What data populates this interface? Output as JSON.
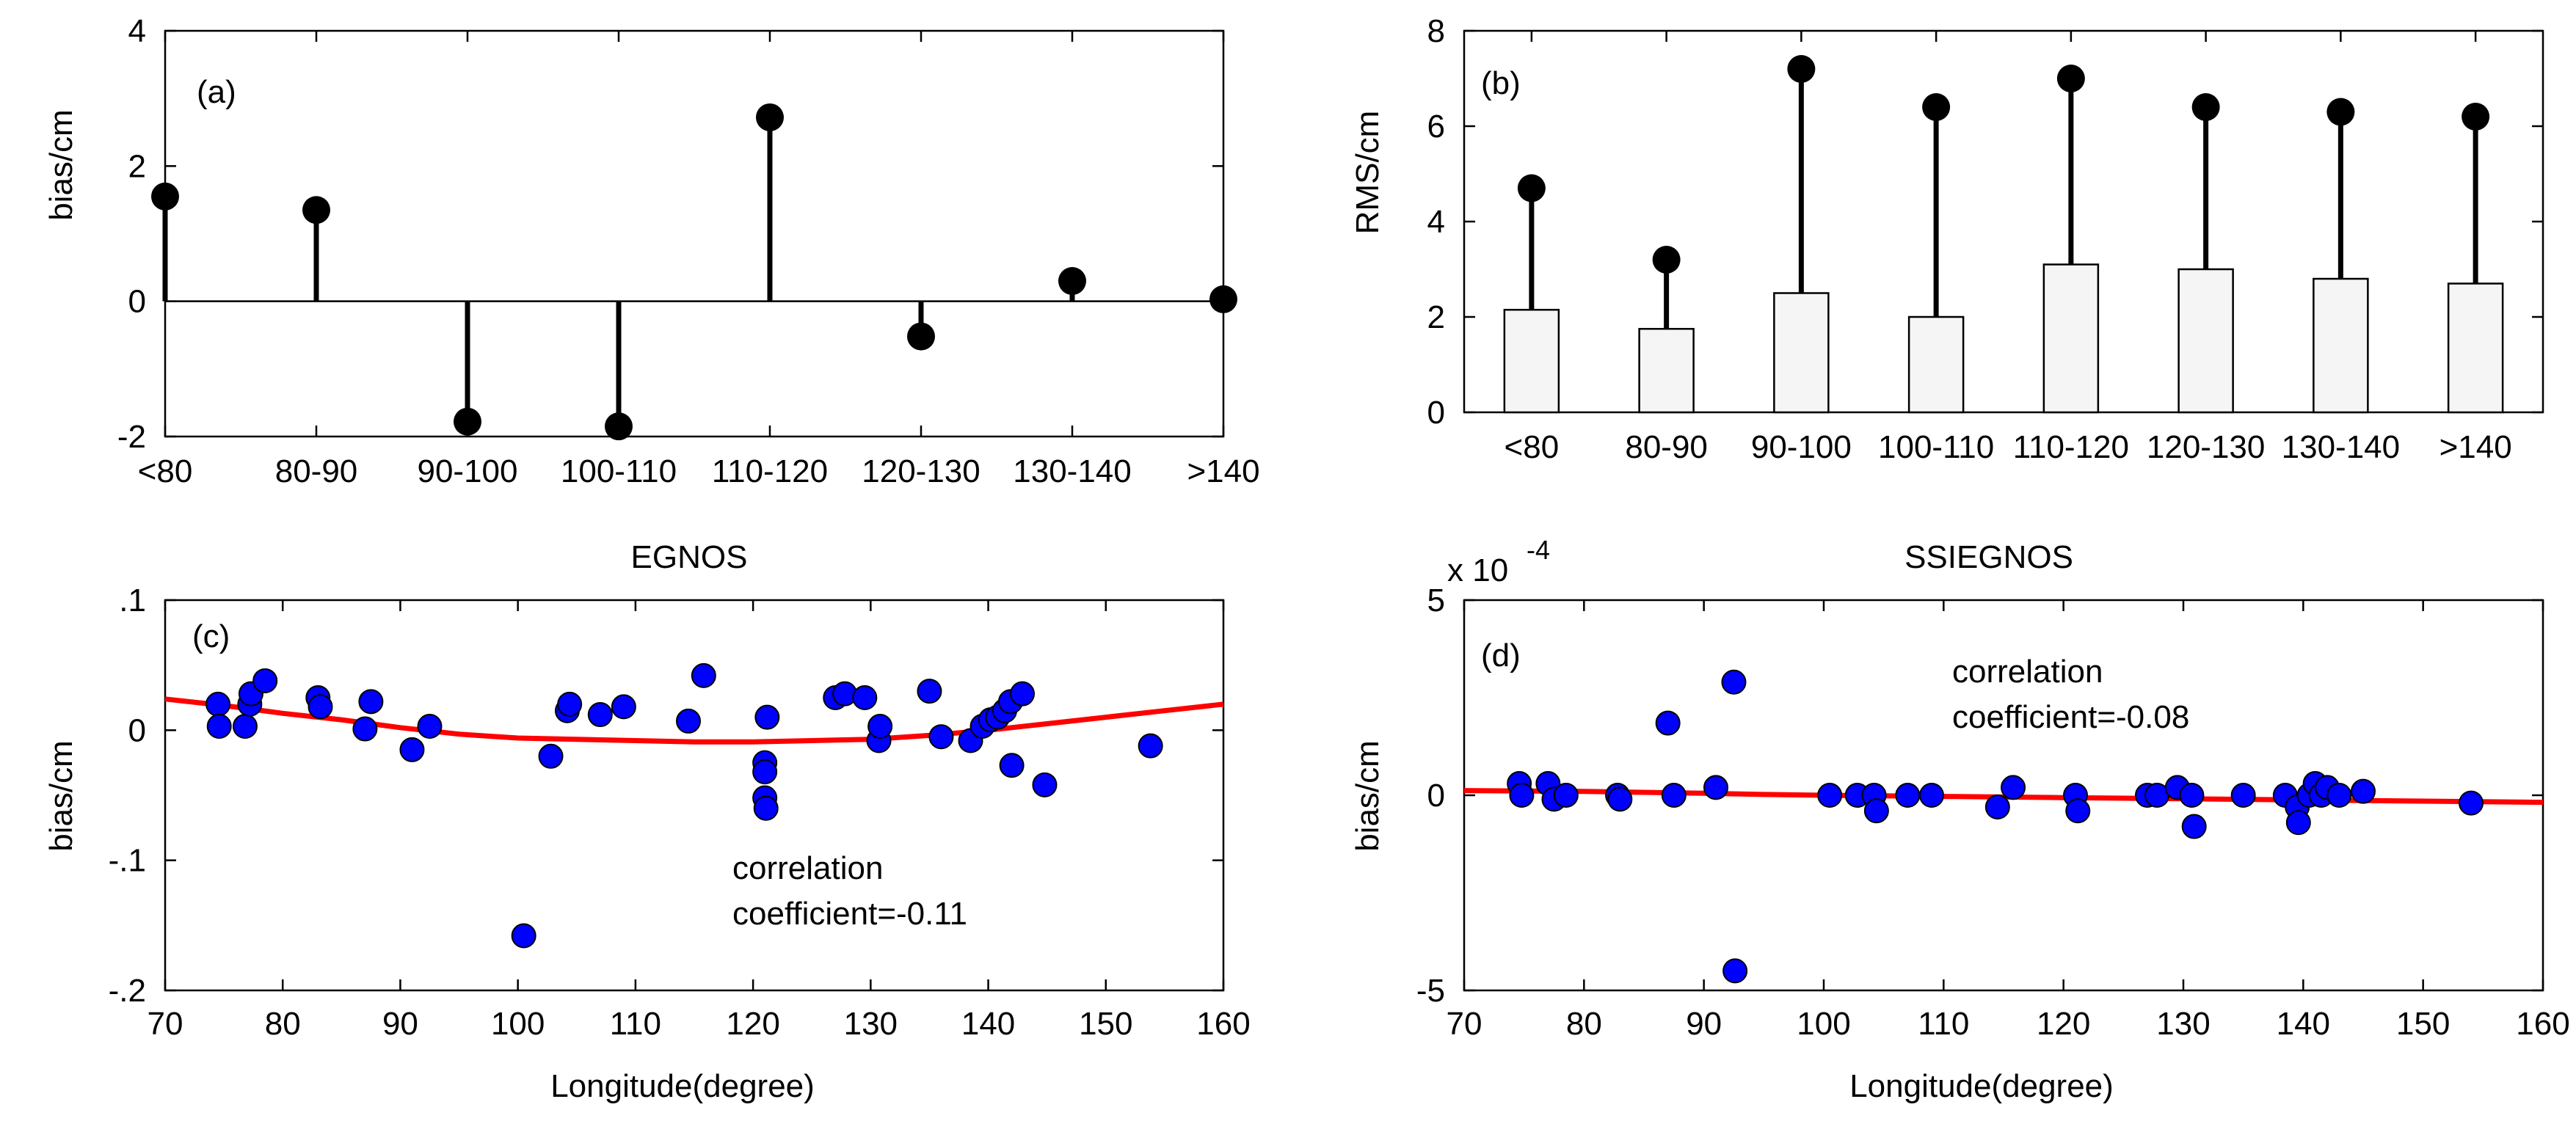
{
  "chart_data": [
    {
      "id": "a",
      "type": "stem",
      "panel_label": "(a)",
      "title": "",
      "xlabel": "",
      "ylabel": "bias/cm",
      "categories": [
        "<80",
        "80-90",
        "90-100",
        "100-110",
        "110-120",
        "120-130",
        "130-140",
        ">140"
      ],
      "values": [
        1.55,
        1.35,
        -1.78,
        -1.85,
        2.72,
        -0.52,
        0.3,
        0.03
      ],
      "ylim": [
        -2,
        4
      ],
      "yticks": [
        -2,
        0,
        2,
        4
      ],
      "colors": {
        "stem": "#000000",
        "marker": "#000000"
      }
    },
    {
      "id": "b",
      "type": "bar",
      "panel_label": "(b)",
      "title": "",
      "xlabel": "",
      "ylabel": "RMS/cm",
      "categories": [
        "<80",
        "80-90",
        "90-100",
        "100-110",
        "110-120",
        "120-130",
        "130-140",
        ">140"
      ],
      "series": [
        {
          "name": "bar",
          "values": [
            2.15,
            1.75,
            2.5,
            2.0,
            3.1,
            3.0,
            2.8,
            2.7
          ]
        },
        {
          "name": "stem",
          "values": [
            4.7,
            3.2,
            7.2,
            6.4,
            7.0,
            6.4,
            6.3,
            6.2
          ]
        }
      ],
      "ylim": [
        0,
        8
      ],
      "yticks": [
        0,
        2,
        4,
        6,
        8
      ],
      "colors": {
        "bar_fill": "#f5f5f5",
        "stem": "#000000"
      }
    },
    {
      "id": "c",
      "type": "scatter",
      "panel_label": "(c)",
      "title": "EGNOS",
      "xlabel": "Longitude(degree)",
      "ylabel": "bias/cm",
      "annotation_lines": [
        "correlation",
        "coefficient=-0.11"
      ],
      "xlim": [
        70,
        160
      ],
      "ylim": [
        -0.2,
        0.1
      ],
      "xticks": [
        70,
        80,
        90,
        100,
        110,
        120,
        130,
        140,
        150,
        160
      ],
      "yticks": [
        -0.2,
        -0.1,
        0,
        0.1
      ],
      "points": [
        [
          74.5,
          0.02
        ],
        [
          74.6,
          0.003
        ],
        [
          76.8,
          0.003
        ],
        [
          77.2,
          0.02
        ],
        [
          77.3,
          0.028
        ],
        [
          78.5,
          0.038
        ],
        [
          83.0,
          0.025
        ],
        [
          83.2,
          0.018
        ],
        [
          87.0,
          0.001
        ],
        [
          87.5,
          0.022
        ],
        [
          91.0,
          -0.015
        ],
        [
          92.5,
          0.003
        ],
        [
          100.5,
          -0.158
        ],
        [
          102.8,
          -0.02
        ],
        [
          104.2,
          0.015
        ],
        [
          104.4,
          0.02
        ],
        [
          107.0,
          0.012
        ],
        [
          109.0,
          0.018
        ],
        [
          114.5,
          0.007
        ],
        [
          115.8,
          0.042
        ],
        [
          121.0,
          -0.025
        ],
        [
          121.0,
          -0.032
        ],
        [
          121.0,
          -0.052
        ],
        [
          121.1,
          -0.06
        ],
        [
          121.2,
          0.01
        ],
        [
          127.0,
          0.025
        ],
        [
          127.8,
          0.028
        ],
        [
          129.5,
          0.025
        ],
        [
          130.7,
          -0.008
        ],
        [
          130.8,
          0.003
        ],
        [
          135.0,
          0.03
        ],
        [
          136.0,
          -0.005
        ],
        [
          138.5,
          -0.008
        ],
        [
          139.5,
          0.003
        ],
        [
          140.2,
          0.008
        ],
        [
          140.8,
          0.01
        ],
        [
          141.4,
          0.015
        ],
        [
          141.9,
          0.022
        ],
        [
          142.0,
          -0.027
        ],
        [
          142.9,
          0.028
        ],
        [
          144.8,
          -0.042
        ],
        [
          153.8,
          -0.012
        ]
      ],
      "fit": {
        "x": [
          70,
          75,
          80,
          85,
          90,
          95,
          100,
          105,
          110,
          115,
          120,
          125,
          130,
          135,
          140,
          145,
          150,
          155,
          160
        ],
        "y": [
          0.024,
          0.019,
          0.013,
          0.008,
          0.002,
          -0.003,
          -0.006,
          -0.007,
          -0.008,
          -0.009,
          -0.009,
          -0.008,
          -0.007,
          -0.004,
          0.0,
          0.005,
          0.01,
          0.015,
          0.02
        ]
      },
      "colors": {
        "marker": "#0000ff",
        "fit": "#ff0000"
      }
    },
    {
      "id": "d",
      "type": "scatter",
      "panel_label": "(d)",
      "title": "SSIEGNOS",
      "xlabel": "Longitude(degree)",
      "ylabel": "bias/cm",
      "multiplier_label": "x 10",
      "multiplier_exponent": "-4",
      "annotation_lines": [
        "correlation",
        "coefficient=-0.08"
      ],
      "xlim": [
        70,
        160
      ],
      "ylim": [
        -5,
        5
      ],
      "xticks": [
        70,
        80,
        90,
        100,
        110,
        120,
        130,
        140,
        150,
        160
      ],
      "yticks": [
        -5,
        0,
        5
      ],
      "points": [
        [
          74.6,
          0.3
        ],
        [
          74.8,
          0.0
        ],
        [
          77.0,
          0.3
        ],
        [
          77.5,
          -0.1
        ],
        [
          78.5,
          0.0
        ],
        [
          82.8,
          0.0
        ],
        [
          83.0,
          -0.1
        ],
        [
          87.0,
          1.85
        ],
        [
          87.5,
          0.0
        ],
        [
          91.0,
          0.2
        ],
        [
          92.5,
          2.9
        ],
        [
          92.6,
          -4.5
        ],
        [
          100.5,
          0.0
        ],
        [
          102.8,
          0.0
        ],
        [
          104.2,
          0.0
        ],
        [
          104.4,
          -0.4
        ],
        [
          107.0,
          0.0
        ],
        [
          109.0,
          0.0
        ],
        [
          114.5,
          -0.3
        ],
        [
          115.8,
          0.2
        ],
        [
          121.0,
          0.0
        ],
        [
          121.2,
          -0.4
        ],
        [
          127.0,
          0.0
        ],
        [
          127.8,
          0.0
        ],
        [
          129.5,
          0.2
        ],
        [
          130.7,
          0.0
        ],
        [
          130.9,
          -0.8
        ],
        [
          135.0,
          0.0
        ],
        [
          138.5,
          0.0
        ],
        [
          139.5,
          -0.3
        ],
        [
          139.6,
          -0.7
        ],
        [
          140.5,
          0.0
        ],
        [
          141.0,
          0.3
        ],
        [
          141.5,
          0.0
        ],
        [
          142.0,
          0.2
        ],
        [
          143.0,
          0.0
        ],
        [
          145.0,
          0.1
        ],
        [
          154.0,
          -0.2
        ]
      ],
      "fit": {
        "x": [
          70,
          80,
          90,
          95,
          100,
          110,
          120,
          130,
          140,
          150,
          160
        ],
        "y": [
          0.12,
          0.1,
          0.05,
          0.02,
          0.0,
          -0.03,
          -0.06,
          -0.09,
          -0.12,
          -0.15,
          -0.18
        ]
      },
      "colors": {
        "marker": "#0000ff",
        "fit": "#ff0000"
      }
    }
  ]
}
